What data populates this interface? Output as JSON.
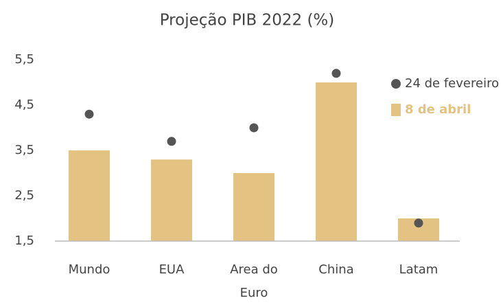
{
  "chart_data": {
    "type": "bar",
    "title": "Projeção PIB 2022 (%)",
    "categories": [
      "Mundo",
      "EUA",
      "Area do Euro",
      "China",
      "Latam"
    ],
    "series": [
      {
        "name": "24 de fevereiro",
        "mark": "dot",
        "color": "#555555",
        "values": [
          4.3,
          3.7,
          4.0,
          5.2,
          1.9
        ]
      },
      {
        "name": "8 de abril",
        "mark": "bar",
        "color": "#e3c282",
        "values": [
          3.5,
          3.3,
          3.0,
          5.0,
          2.0
        ]
      }
    ],
    "ylim": [
      1.5,
      5.5
    ],
    "yticks": [
      {
        "value": 1.5,
        "label": "1,5"
      },
      {
        "value": 2.5,
        "label": "2,5"
      },
      {
        "value": 3.5,
        "label": "3,5"
      },
      {
        "value": 4.5,
        "label": "4,5"
      },
      {
        "value": 5.5,
        "label": "5,5"
      }
    ],
    "grid": false,
    "legend": "upper right"
  }
}
